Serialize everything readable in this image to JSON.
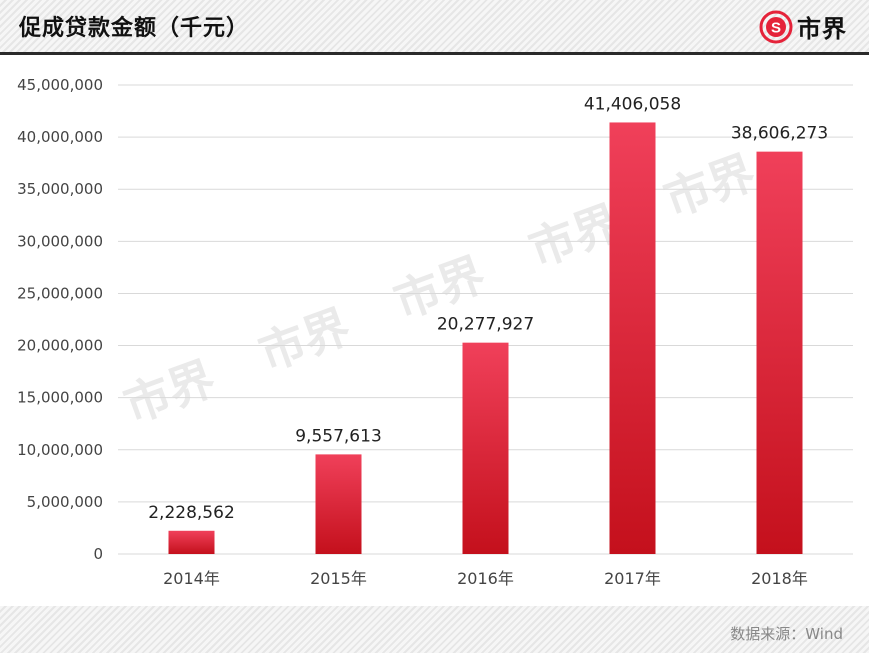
{
  "header": {
    "title": "促成贷款金额（千元）",
    "logo_text": "市界"
  },
  "watermark_text": "市界",
  "footer": {
    "source": "数据来源：Wind"
  },
  "colors": {
    "bar_top": "#f0405a",
    "bar_bottom": "#c4101c",
    "grid": "#d9d9d9",
    "logo": "#e5233a"
  },
  "chart_data": {
    "type": "bar",
    "title": "促成贷款金额（千元）",
    "categories": [
      "2014年",
      "2015年",
      "2016年",
      "2017年",
      "2018年"
    ],
    "values": [
      2228562,
      9557613,
      20277927,
      41406058,
      38606273
    ],
    "value_labels": [
      "2,228,562",
      "9,557,613",
      "20,277,927",
      "41,406,058",
      "38,606,273"
    ],
    "yticks": [
      "0",
      "5,000,000",
      "10,000,000",
      "15,000,000",
      "20,000,000",
      "25,000,000",
      "30,000,000",
      "35,000,000",
      "40,000,000",
      "45,000,000"
    ],
    "ylim": [
      0,
      45000000
    ],
    "xlabel": "",
    "ylabel": "",
    "grid": true,
    "legend": "none"
  }
}
